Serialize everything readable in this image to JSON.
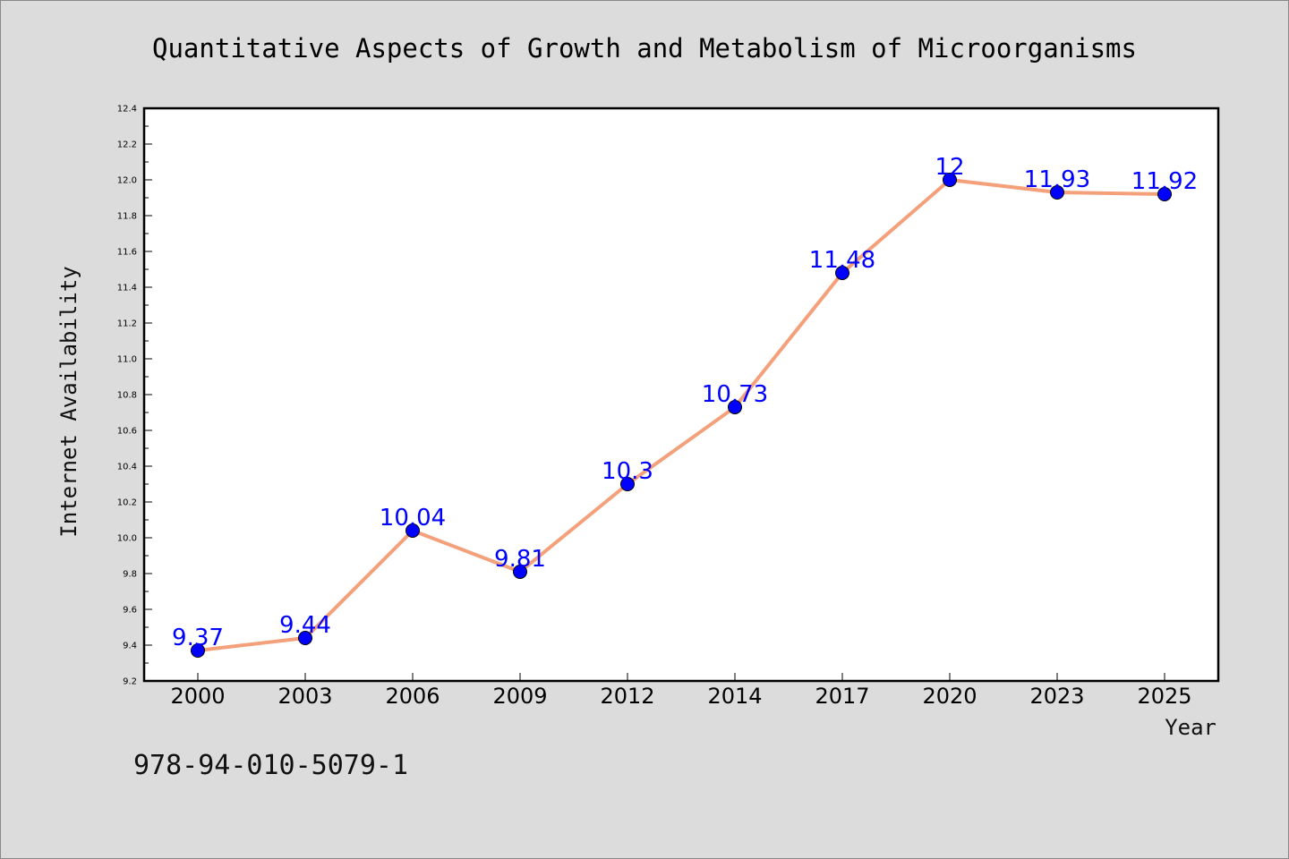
{
  "footer_code": "978-94-010-5079-1",
  "chart_data": {
    "type": "line",
    "title": "Quantitative Aspects of Growth and Metabolism of Microorganisms",
    "xlabel": "Year",
    "ylabel": "Internet Availability",
    "categories": [
      "2000",
      "2003",
      "2006",
      "2009",
      "2012",
      "2014",
      "2017",
      "2020",
      "2023",
      "2025"
    ],
    "series": [
      {
        "values": [
          9.37,
          9.44,
          10.04,
          9.81,
          10.3,
          10.73,
          11.48,
          12,
          11.93,
          11.92
        ],
        "data_labels": [
          "9.37",
          "9.44",
          "10.04",
          "9.81",
          "10.3",
          "10.73",
          "11.48",
          "12",
          "11.93",
          "11.92"
        ],
        "line_color": "#f4a07a",
        "marker_color": "#0000ff",
        "label_color": "#0000ff"
      }
    ],
    "ylim": [
      9.2,
      12.4
    ],
    "yticks": [
      "9.2",
      "9.4",
      "9.6",
      "9.8",
      "10.0",
      "10.2",
      "10.4",
      "10.6",
      "10.8",
      "11.0",
      "11.2",
      "11.4",
      "11.6",
      "11.8",
      "12.0",
      "12.2",
      "12.4"
    ],
    "grid": false,
    "legend": "none"
  }
}
